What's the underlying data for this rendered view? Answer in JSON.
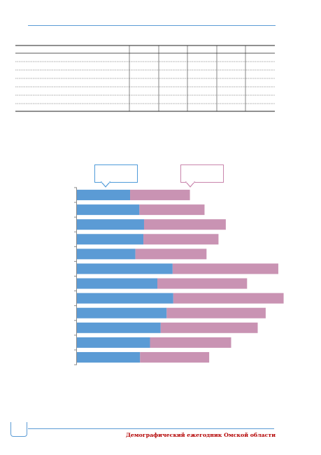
{
  "footer": {
    "title": "Демографический ежегодник Омской области",
    "page_number": ""
  },
  "table": {
    "columns": 6,
    "rows": 8
  },
  "legend": {
    "series_1_color": "#5b9bd5",
    "series_2_color": "#c993b3"
  },
  "chart_data": {
    "type": "bar",
    "orientation": "horizontal",
    "stacked": true,
    "categories": [
      "",
      "",
      "",
      "",
      "",
      "",
      "",
      "",
      "",
      "",
      "",
      ""
    ],
    "series": [
      {
        "color": "#5b9bd5",
        "values": [
          80,
          94,
          101,
          100,
          88,
          144,
          121,
          145,
          135,
          126,
          110,
          95
        ]
      },
      {
        "color": "#c993b3",
        "values": [
          90,
          98,
          123,
          113,
          107,
          159,
          135,
          166,
          149,
          146,
          122,
          104
        ]
      }
    ],
    "xlim": [
      0,
      320
    ]
  }
}
